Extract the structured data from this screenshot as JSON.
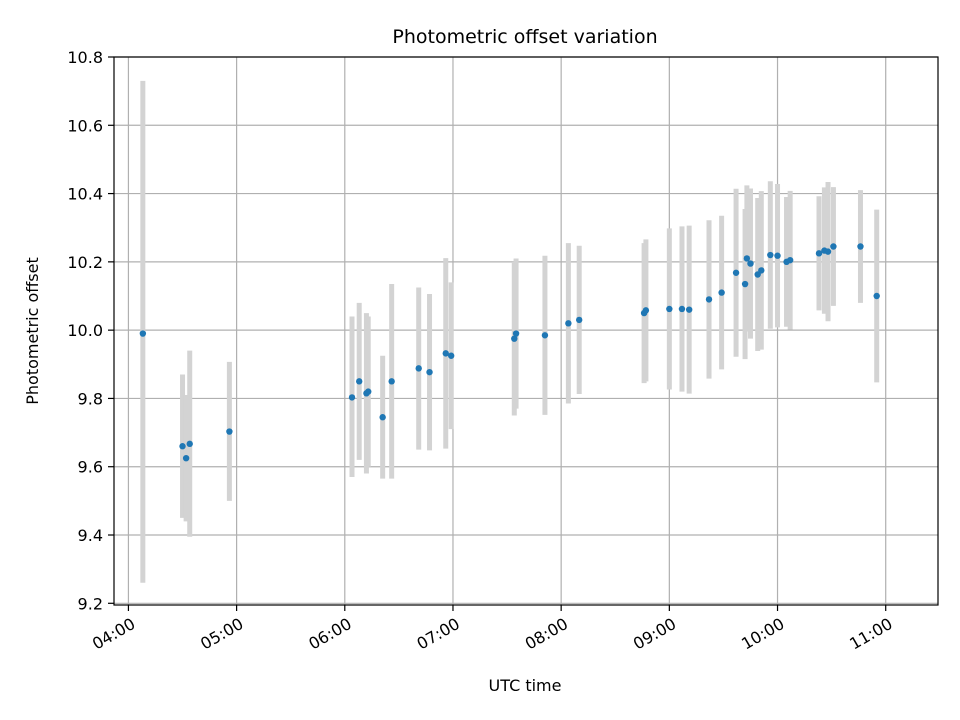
{
  "chart_data": {
    "type": "scatter",
    "title": "Photometric offset variation",
    "xlabel": "UTC time",
    "ylabel": "Photometric offset",
    "x_is_time": true,
    "xlim": [
      "03:52",
      "11:29"
    ],
    "ylim": [
      9.195,
      10.8
    ],
    "x_ticks": [
      "04:00",
      "05:00",
      "06:00",
      "07:00",
      "08:00",
      "09:00",
      "10:00",
      "11:00"
    ],
    "y_ticks": [
      9.2,
      9.4,
      9.6,
      9.8,
      10.0,
      10.2,
      10.4,
      10.6,
      10.8
    ],
    "y_tick_labels": [
      "9.2",
      "9.4",
      "9.6",
      "9.8",
      "10.0",
      "10.2",
      "10.4",
      "10.6",
      "10.8"
    ],
    "grid": true,
    "colors": {
      "point": "#1f77b4",
      "errorbar": "#d3d3d3",
      "grid": "#b0b0b0"
    },
    "points": [
      {
        "x": "04:08",
        "y": 9.99,
        "lo": 9.26,
        "hi": 10.73
      },
      {
        "x": "04:30",
        "y": 9.66,
        "lo": 9.45,
        "hi": 9.87
      },
      {
        "x": "04:32",
        "y": 9.625,
        "lo": 9.44,
        "hi": 9.81
      },
      {
        "x": "04:34",
        "y": 9.667,
        "lo": 9.395,
        "hi": 9.94
      },
      {
        "x": "04:56",
        "y": 9.703,
        "lo": 9.5,
        "hi": 9.907
      },
      {
        "x": "06:04",
        "y": 9.803,
        "lo": 9.57,
        "hi": 10.04
      },
      {
        "x": "06:08",
        "y": 9.85,
        "lo": 9.62,
        "hi": 10.08
      },
      {
        "x": "06:12",
        "y": 9.815,
        "lo": 9.58,
        "hi": 10.05
      },
      {
        "x": "06:13",
        "y": 9.82,
        "lo": 9.6,
        "hi": 10.04
      },
      {
        "x": "06:21",
        "y": 9.745,
        "lo": 9.565,
        "hi": 9.925
      },
      {
        "x": "06:26",
        "y": 9.85,
        "lo": 9.565,
        "hi": 10.135
      },
      {
        "x": "06:41",
        "y": 9.888,
        "lo": 9.65,
        "hi": 10.125
      },
      {
        "x": "06:47",
        "y": 9.877,
        "lo": 9.648,
        "hi": 10.106
      },
      {
        "x": "06:56",
        "y": 9.932,
        "lo": 9.653,
        "hi": 10.211
      },
      {
        "x": "06:59",
        "y": 9.925,
        "lo": 9.71,
        "hi": 10.14
      },
      {
        "x": "07:34",
        "y": 9.975,
        "lo": 9.75,
        "hi": 10.2
      },
      {
        "x": "07:35",
        "y": 9.99,
        "lo": 9.77,
        "hi": 10.21
      },
      {
        "x": "07:51",
        "y": 9.985,
        "lo": 9.752,
        "hi": 10.218
      },
      {
        "x": "08:04",
        "y": 10.02,
        "lo": 9.785,
        "hi": 10.255
      },
      {
        "x": "08:10",
        "y": 10.03,
        "lo": 9.813,
        "hi": 10.247
      },
      {
        "x": "08:46",
        "y": 10.05,
        "lo": 9.845,
        "hi": 10.255
      },
      {
        "x": "08:47",
        "y": 10.058,
        "lo": 9.85,
        "hi": 10.266
      },
      {
        "x": "09:00",
        "y": 10.062,
        "lo": 9.826,
        "hi": 10.298
      },
      {
        "x": "09:07",
        "y": 10.062,
        "lo": 9.82,
        "hi": 10.304
      },
      {
        "x": "09:11",
        "y": 10.06,
        "lo": 9.814,
        "hi": 10.306
      },
      {
        "x": "09:22",
        "y": 10.09,
        "lo": 9.858,
        "hi": 10.322
      },
      {
        "x": "09:29",
        "y": 10.11,
        "lo": 9.885,
        "hi": 10.335
      },
      {
        "x": "09:37",
        "y": 10.168,
        "lo": 9.922,
        "hi": 10.414
      },
      {
        "x": "09:42",
        "y": 10.135,
        "lo": 9.915,
        "hi": 10.355
      },
      {
        "x": "09:43",
        "y": 10.21,
        "lo": 9.996,
        "hi": 10.424
      },
      {
        "x": "09:45",
        "y": 10.195,
        "lo": 9.975,
        "hi": 10.415
      },
      {
        "x": "09:49",
        "y": 10.163,
        "lo": 9.939,
        "hi": 10.387
      },
      {
        "x": "09:51",
        "y": 10.175,
        "lo": 9.943,
        "hi": 10.407
      },
      {
        "x": "09:56",
        "y": 10.22,
        "lo": 10.004,
        "hi": 10.436
      },
      {
        "x": "10:00",
        "y": 10.218,
        "lo": 10.008,
        "hi": 10.428
      },
      {
        "x": "10:05",
        "y": 10.2,
        "lo": 10.01,
        "hi": 10.39
      },
      {
        "x": "10:07",
        "y": 10.205,
        "lo": 10.002,
        "hi": 10.408
      },
      {
        "x": "10:23",
        "y": 10.225,
        "lo": 10.058,
        "hi": 10.392
      },
      {
        "x": "10:26",
        "y": 10.233,
        "lo": 10.048,
        "hi": 10.418
      },
      {
        "x": "10:28",
        "y": 10.23,
        "lo": 10.026,
        "hi": 10.434
      },
      {
        "x": "10:31",
        "y": 10.245,
        "lo": 10.071,
        "hi": 10.419
      },
      {
        "x": "10:46",
        "y": 10.245,
        "lo": 10.08,
        "hi": 10.41
      },
      {
        "x": "10:55",
        "y": 10.1,
        "lo": 9.847,
        "hi": 10.353
      }
    ]
  }
}
